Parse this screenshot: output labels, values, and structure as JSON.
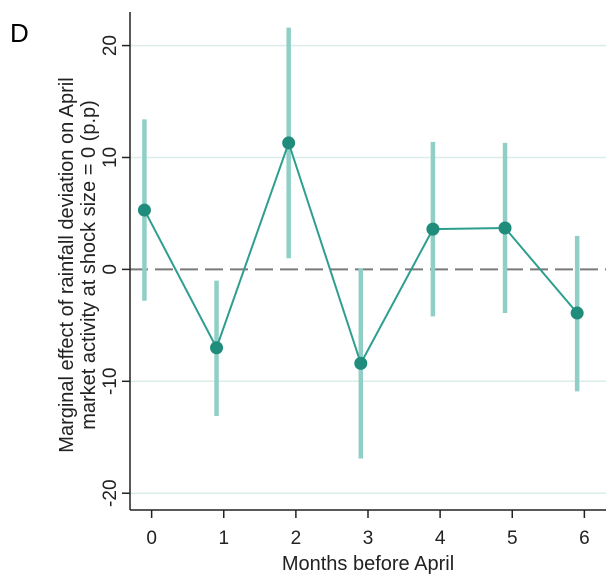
{
  "chart_data": {
    "type": "line",
    "panel_label": "D",
    "title": "",
    "xlabel": "Months before April",
    "ylabel_lines": [
      "Marginal effect of rainfall deviation on April",
      "market activity at shock size = 0 (p.p)"
    ],
    "x": [
      0,
      1,
      2,
      3,
      4,
      5,
      6
    ],
    "x_plot_positions": [
      -0.1,
      0.9,
      1.9,
      2.9,
      3.9,
      4.9,
      5.9
    ],
    "x_ticks": [
      "0",
      "1",
      "2",
      "3",
      "4",
      "5",
      "6"
    ],
    "xlim": [
      -0.3,
      6.3
    ],
    "y_ticks": [
      "20",
      "10",
      "0",
      "-10",
      "-20"
    ],
    "ylim": [
      -21.5,
      23
    ],
    "series": [
      {
        "values": [
          5.3,
          -7.0,
          11.3,
          -8.4,
          3.6,
          3.7,
          -3.9
        ],
        "ci_low": [
          -2.8,
          -13.1,
          1.0,
          -16.9,
          -4.2,
          -3.9,
          -10.9
        ],
        "ci_high": [
          13.4,
          -1.0,
          21.6,
          0.1,
          11.4,
          11.3,
          3.0
        ]
      }
    ],
    "reference_line": 0,
    "grid": true,
    "colors": {
      "line": "#2e9e8f",
      "marker": "#1f8c7c",
      "ci": "#8fcfc5",
      "grid": "#dcecea",
      "reference": "#7a7a7a",
      "axis": "#222222"
    }
  }
}
